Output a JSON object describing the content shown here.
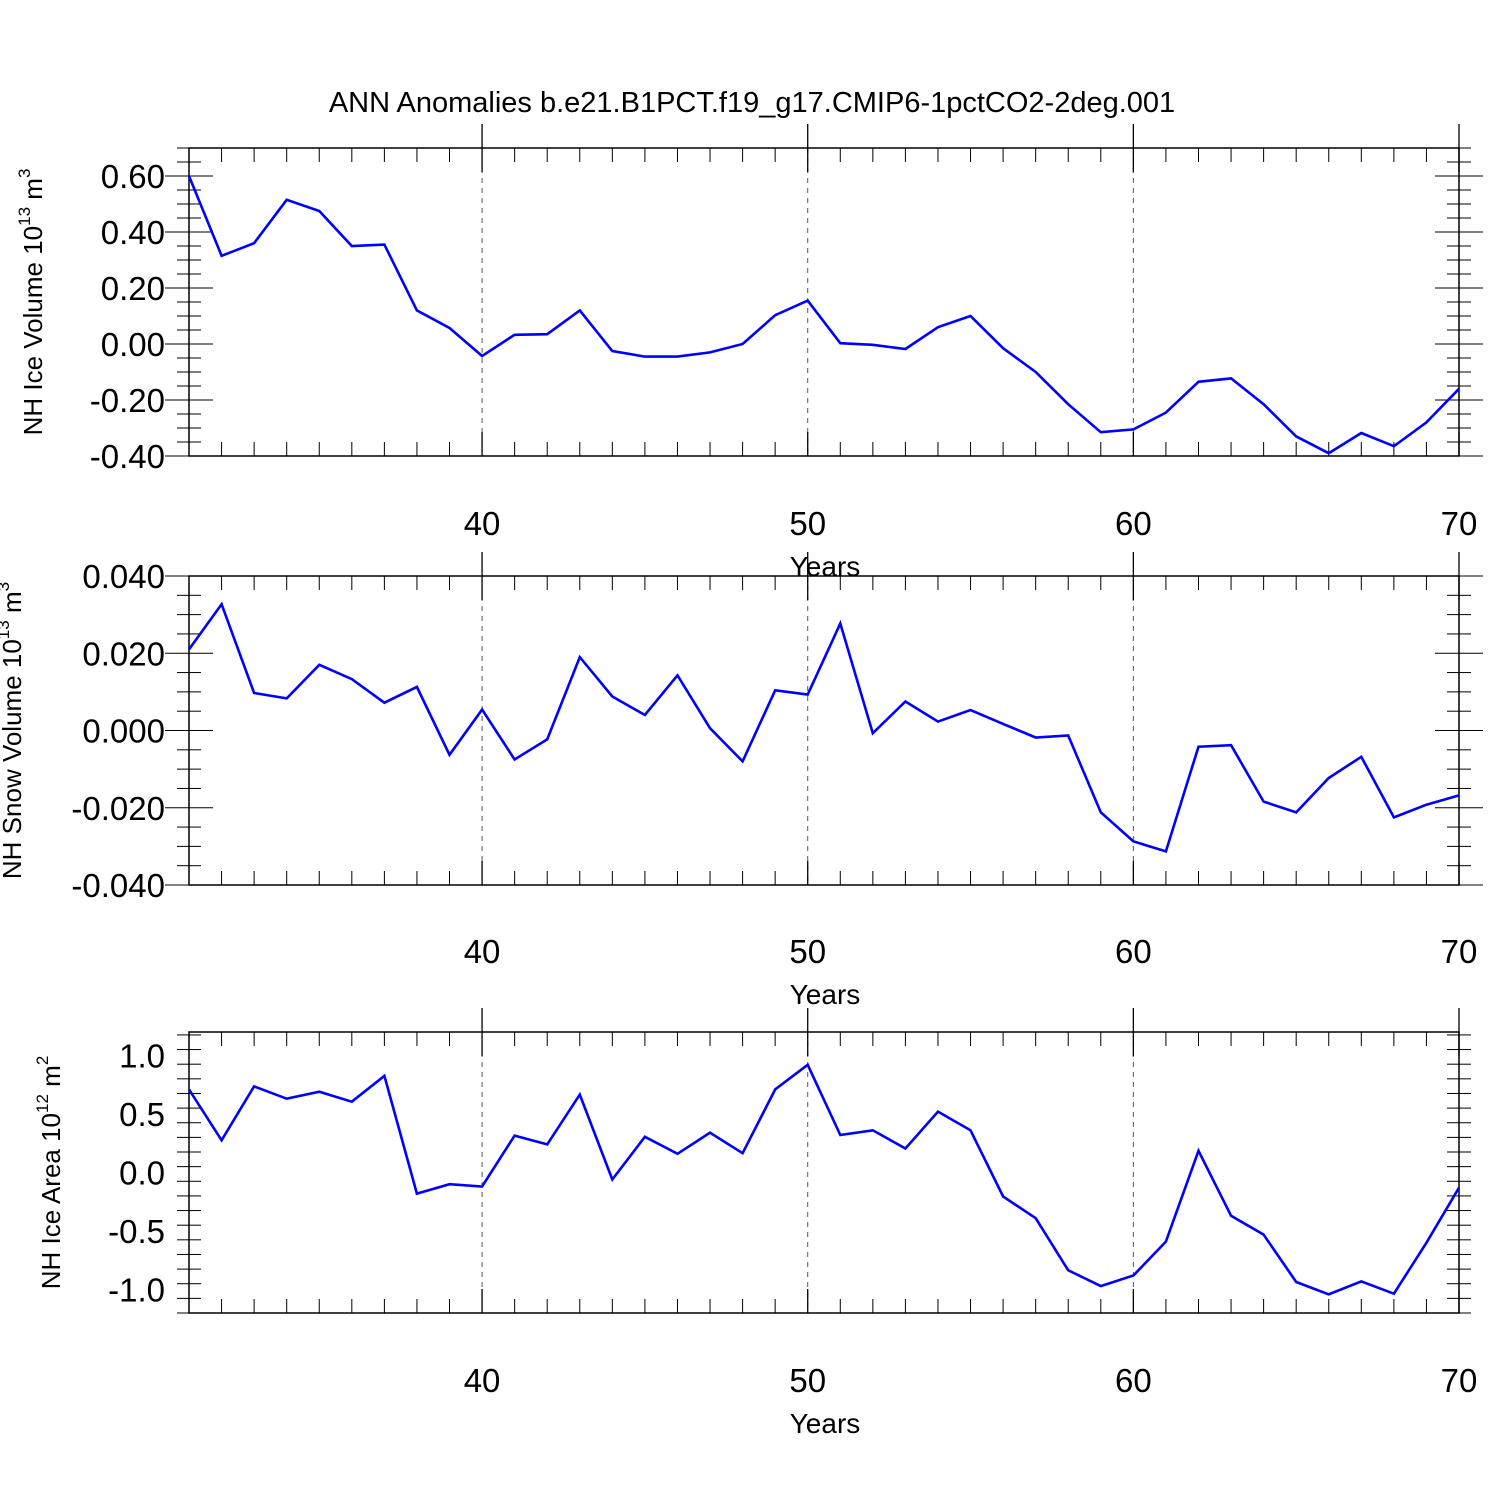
{
  "title": "ANN Anomalies b.e21.B1PCT.f19_g17.CMIP6-1pctCO2-2deg.001",
  "colors": {
    "line": "#0000ff",
    "axis": "#000000",
    "grid": "#555555"
  },
  "chart_data": [
    {
      "type": "line",
      "ylabel": {
        "base": "NH Ice Volume 10",
        "exp": "13",
        "unit": " m",
        "unit_exp": "3"
      },
      "xlabel": "Years",
      "xlim": [
        31,
        70
      ],
      "ylim": [
        -0.4,
        0.7
      ],
      "x_ticks": [
        40,
        50,
        60,
        70
      ],
      "x_tick_labels": [
        "40",
        "50",
        "60",
        "70"
      ],
      "y_ticks": [
        -0.4,
        -0.2,
        0.0,
        0.2,
        0.4,
        0.6
      ],
      "y_tick_labels": [
        "-0.40",
        "-0.20",
        "0.00",
        "0.20",
        "0.40",
        "0.60"
      ],
      "grid": "dashed vertical at major x ticks",
      "x": [
        31,
        32,
        33,
        34,
        35,
        36,
        37,
        38,
        39,
        40,
        41,
        42,
        43,
        44,
        45,
        46,
        47,
        48,
        49,
        50,
        51,
        52,
        53,
        54,
        55,
        56,
        57,
        58,
        59,
        60,
        61,
        62,
        63,
        64,
        65,
        66,
        67,
        68,
        69,
        70
      ],
      "y": [
        0.6,
        0.315,
        0.36,
        0.515,
        0.475,
        0.35,
        0.355,
        0.12,
        0.057,
        -0.043,
        0.033,
        0.035,
        0.12,
        -0.025,
        -0.045,
        -0.045,
        -0.03,
        0.0,
        0.103,
        0.155,
        0.003,
        -0.003,
        -0.018,
        0.06,
        0.1,
        -0.015,
        -0.1,
        -0.215,
        -0.315,
        -0.305,
        -0.245,
        -0.135,
        -0.123,
        -0.215,
        -0.33,
        -0.39,
        -0.318,
        -0.365,
        -0.28,
        -0.16
      ]
    },
    {
      "type": "line",
      "ylabel": {
        "base": "NH Snow Volume 10",
        "exp": "13",
        "unit": " m",
        "unit_exp": "3"
      },
      "xlabel": "Years",
      "xlim": [
        31,
        70
      ],
      "ylim": [
        -0.04,
        0.04
      ],
      "x_ticks": [
        40,
        50,
        60,
        70
      ],
      "x_tick_labels": [
        "40",
        "50",
        "60",
        "70"
      ],
      "y_ticks": [
        -0.04,
        -0.02,
        0.0,
        0.02,
        0.04
      ],
      "y_tick_labels": [
        "-0.040",
        "-0.020",
        "0.000",
        "0.020",
        "0.040"
      ],
      "grid": "dashed vertical at major x ticks",
      "x": [
        31,
        32,
        33,
        34,
        35,
        36,
        37,
        38,
        39,
        40,
        41,
        42,
        43,
        44,
        45,
        46,
        47,
        48,
        49,
        50,
        51,
        52,
        53,
        54,
        55,
        56,
        57,
        58,
        59,
        60,
        61,
        62,
        63,
        64,
        65,
        66,
        67,
        68,
        69,
        70
      ],
      "y": [
        0.021,
        0.0327,
        0.0097,
        0.0083,
        0.017,
        0.0133,
        0.0072,
        0.0113,
        -0.0063,
        0.0054,
        -0.0075,
        -0.0023,
        0.019,
        0.0088,
        0.004,
        0.0143,
        0.0006,
        -0.008,
        0.0104,
        0.0093,
        0.0277,
        -0.0007,
        0.0075,
        0.0023,
        0.0053,
        0.0017,
        -0.0018,
        -0.0013,
        -0.0212,
        -0.0287,
        -0.0313,
        -0.0042,
        -0.0038,
        -0.0184,
        -0.0212,
        -0.0123,
        -0.0068,
        -0.0225,
        -0.0192,
        -0.0168
      ]
    },
    {
      "type": "line",
      "ylabel": {
        "base": "NH Ice Area 10",
        "exp": "12",
        "unit": " m",
        "unit_exp": "2"
      },
      "xlabel": "Years",
      "xlim": [
        31,
        70
      ],
      "ylim": [
        -1.2,
        1.2
      ],
      "x_ticks": [
        40,
        50,
        60,
        70
      ],
      "x_tick_labels": [
        "40",
        "50",
        "60",
        "70"
      ],
      "y_ticks": [
        -1.0,
        -0.5,
        0.0,
        0.5,
        1.0
      ],
      "y_tick_labels": [
        "-1.0",
        "-0.5",
        "0.0",
        "0.5",
        "1.0"
      ],
      "grid": "dashed vertical at major x ticks",
      "x": [
        31,
        32,
        33,
        34,
        35,
        36,
        37,
        38,
        39,
        40,
        41,
        42,
        43,
        44,
        45,
        46,
        47,
        48,
        49,
        50,
        51,
        52,
        53,
        54,
        55,
        56,
        57,
        58,
        59,
        60,
        61,
        62,
        63,
        64,
        65,
        66,
        67,
        68,
        69,
        70
      ],
      "y": [
        0.71,
        0.275,
        0.735,
        0.63,
        0.69,
        0.605,
        0.825,
        -0.18,
        -0.1,
        -0.12,
        0.315,
        0.24,
        0.665,
        -0.06,
        0.305,
        0.16,
        0.34,
        0.165,
        0.71,
        0.92,
        0.32,
        0.36,
        0.205,
        0.52,
        0.36,
        -0.205,
        -0.39,
        -0.835,
        -0.97,
        -0.88,
        -0.59,
        0.185,
        -0.37,
        -0.53,
        -0.935,
        -1.04,
        -0.93,
        -1.035,
        -0.6,
        -0.13
      ]
    }
  ]
}
